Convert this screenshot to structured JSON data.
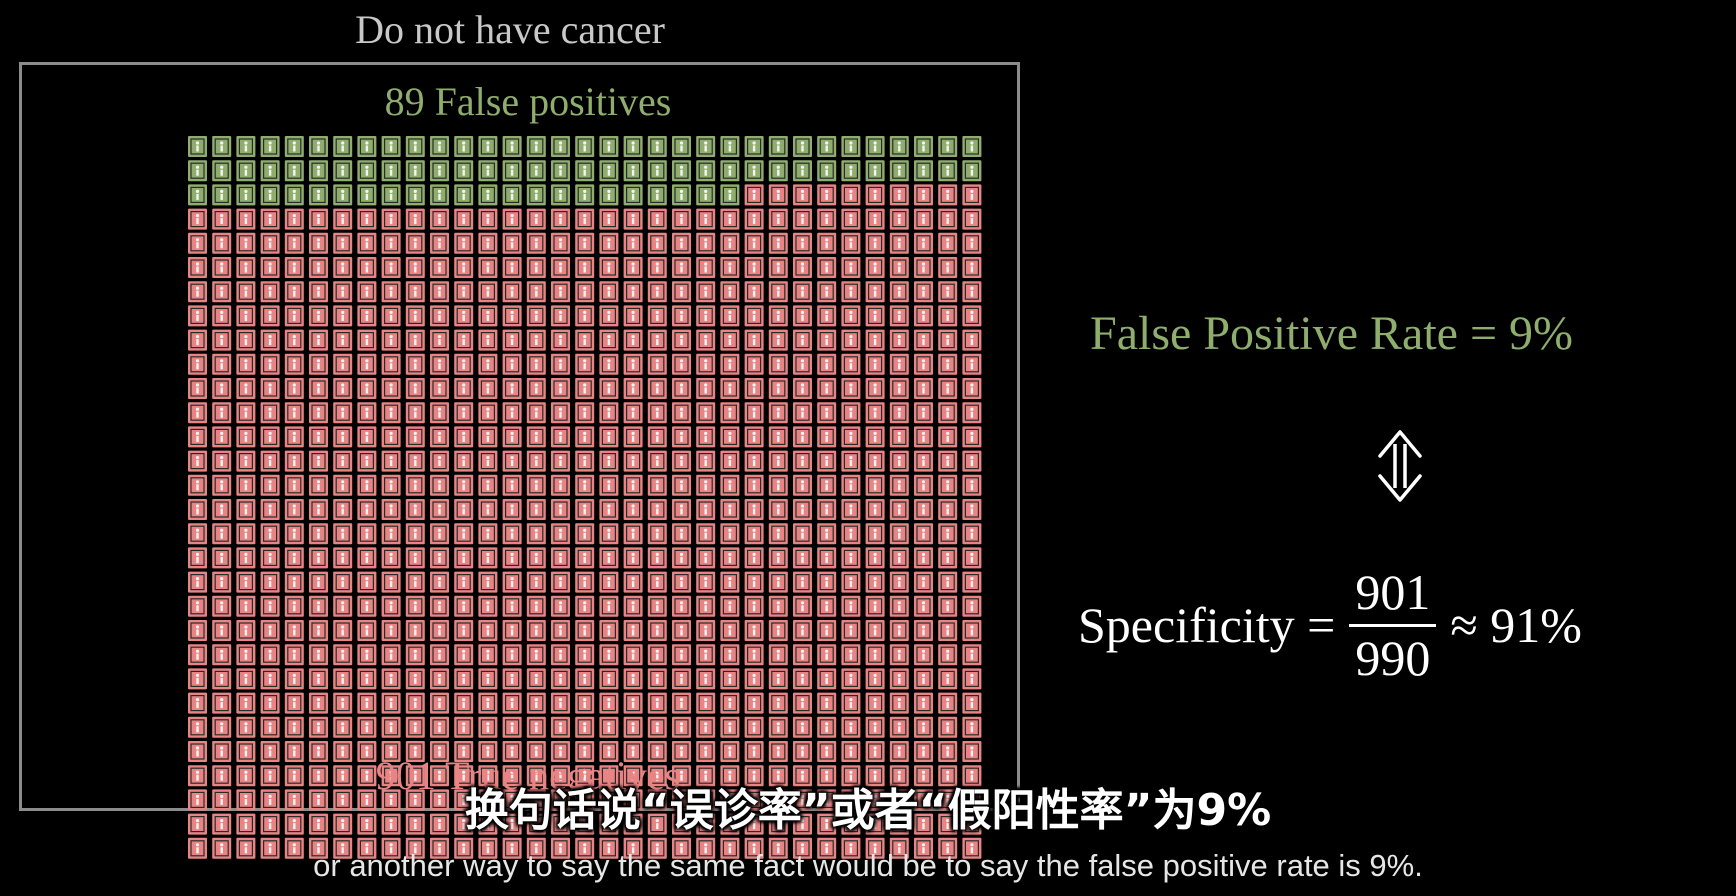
{
  "group_title": "Do not have cancer",
  "false_positives_label": "89 False positives",
  "true_negatives_label": "901 True negatives",
  "false_positive_count": 89,
  "true_negative_count": 901,
  "equation_fpr": "False Positive Rate = 9%",
  "specificity": {
    "lhs": "Specificity =",
    "numerator": "901",
    "denominator": "990",
    "rhs": "≈ 91%"
  },
  "subtitle_cn": "换句话说“误诊率”或者“假阳性率”为9%",
  "subtitle_en": "or another way to say the same fact would be to say the false positive rate is 9%.",
  "colors": {
    "background": "#000000",
    "false_positive": "#8fae6e",
    "true_negative": "#e88484",
    "frame": "#8c8c8c",
    "title": "#c8c8c8"
  },
  "icons": {
    "arrow": "double-vertical-arrow-icon",
    "person": "person-icon"
  }
}
